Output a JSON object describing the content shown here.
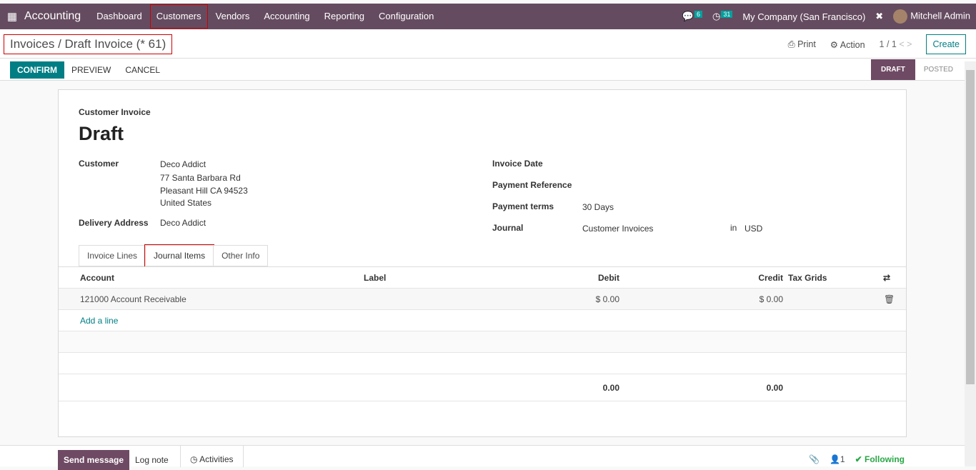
{
  "nav": {
    "app": "Accounting",
    "menus": [
      "Dashboard",
      "Customers",
      "Vendors",
      "Accounting",
      "Reporting",
      "Configuration"
    ],
    "messages": "6",
    "activities": "31",
    "company": "My Company (San Francisco)",
    "user": "Mitchell Admin"
  },
  "control": {
    "breadcrumb": "Invoices / Draft Invoice (* 61)",
    "print": "Print",
    "action": "Action",
    "pager": "1 / 1",
    "create": "Create",
    "confirm": "CONFIRM",
    "preview": "PREVIEW",
    "cancel": "CANCEL",
    "status": [
      "DRAFT",
      "POSTED"
    ]
  },
  "form": {
    "type": "Customer Invoice",
    "title": "Draft",
    "customer_label": "Customer",
    "customer": "Deco Addict",
    "address": [
      "77 Santa Barbara Rd",
      "Pleasant Hill CA 94523",
      "United States"
    ],
    "delivery_label": "Delivery Address",
    "delivery": "Deco Addict",
    "invoice_date_label": "Invoice Date",
    "payref_label": "Payment Reference",
    "terms_label": "Payment terms",
    "terms": "30 Days",
    "journal_label": "Journal",
    "journal": "Customer Invoices",
    "in": "in",
    "currency": "USD"
  },
  "tabs": [
    "Invoice Lines",
    "Journal Items",
    "Other Info"
  ],
  "table": {
    "headers": [
      "Account",
      "Label",
      "Debit",
      "Credit",
      "Tax Grids"
    ],
    "rows": [
      {
        "account": "121000 Account Receivable",
        "label": "",
        "debit": "$ 0.00",
        "credit": "$ 0.00"
      }
    ],
    "add_line": "Add a line",
    "total_debit": "0.00",
    "total_credit": "0.00"
  },
  "chatter": {
    "send": "Send message",
    "log": "Log note",
    "activities": "Activities",
    "followers": "1",
    "following": "Following"
  }
}
